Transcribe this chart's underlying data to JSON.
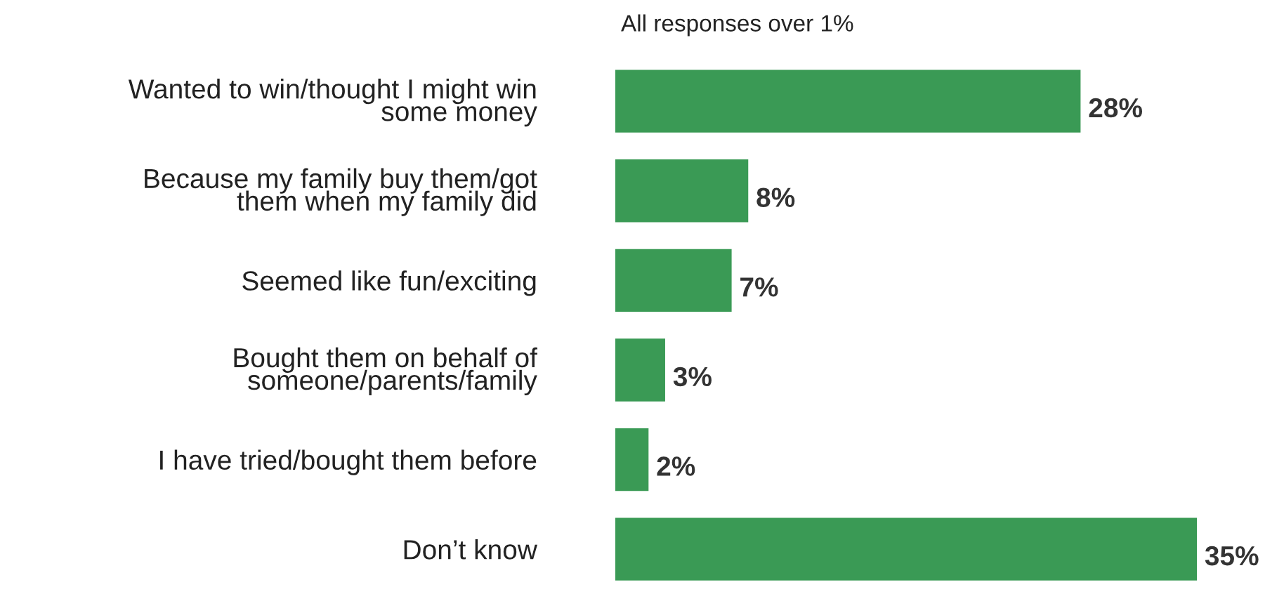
{
  "chart_data": {
    "type": "bar",
    "orientation": "horizontal",
    "subtitle": "All responses over 1%",
    "categories": [
      "Wanted to win/thought I might win\nsome money",
      "Because my family buy them/got\nthem when my family did",
      "Seemed like fun/exciting",
      "Bought them on behalf of\nsomeone/parents/family",
      "I have tried/bought them before",
      "Don’t know"
    ],
    "values": [
      28,
      8,
      7,
      3,
      2,
      35
    ],
    "value_labels": [
      "28%",
      "8%",
      "7%",
      "3%",
      "2%",
      "35%"
    ],
    "color": "#3a9a55",
    "grid": false,
    "legend": false
  }
}
